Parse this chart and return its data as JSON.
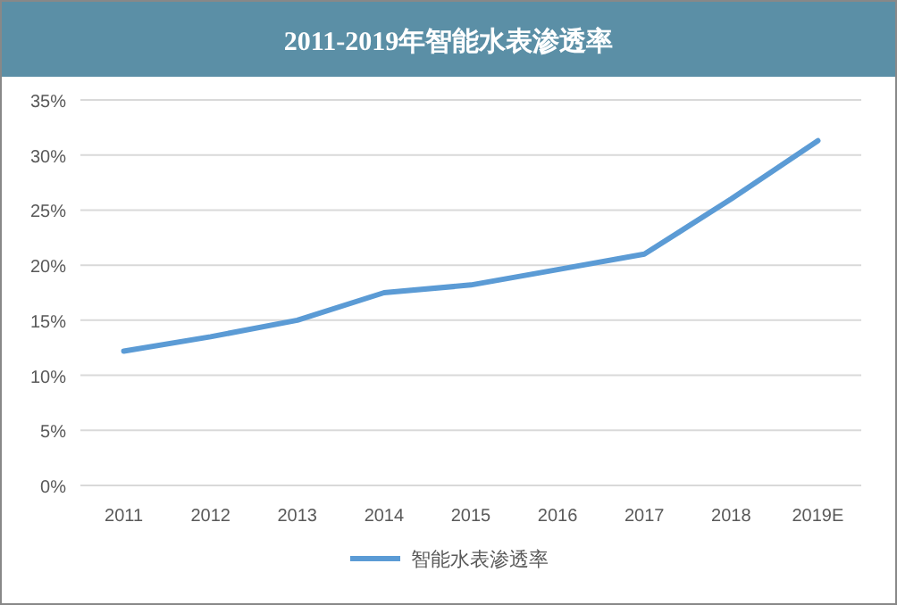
{
  "chart_data": {
    "type": "line",
    "title": "2011-2019年智能水表渗透率",
    "categories": [
      "2011",
      "2012",
      "2013",
      "2014",
      "2015",
      "2016",
      "2017",
      "2018",
      "2019E"
    ],
    "series": [
      {
        "name": "智能水表渗透率",
        "color": "#5b9bd5",
        "values": [
          12.2,
          13.5,
          15,
          17.5,
          18.2,
          19.6,
          21,
          26,
          31.3
        ]
      }
    ],
    "ylim": [
      0,
      35
    ],
    "yticks": [
      {
        "value": 0,
        "label": "0%"
      },
      {
        "value": 5,
        "label": "5%"
      },
      {
        "value": 10,
        "label": "10%"
      },
      {
        "value": 15,
        "label": "15%"
      },
      {
        "value": 20,
        "label": "20%"
      },
      {
        "value": 25,
        "label": "25%"
      },
      {
        "value": 30,
        "label": "30%"
      },
      {
        "value": 35,
        "label": "35%"
      }
    ],
    "grid": "y",
    "legend": "bottom",
    "marker": "none",
    "line_style": "solid"
  }
}
